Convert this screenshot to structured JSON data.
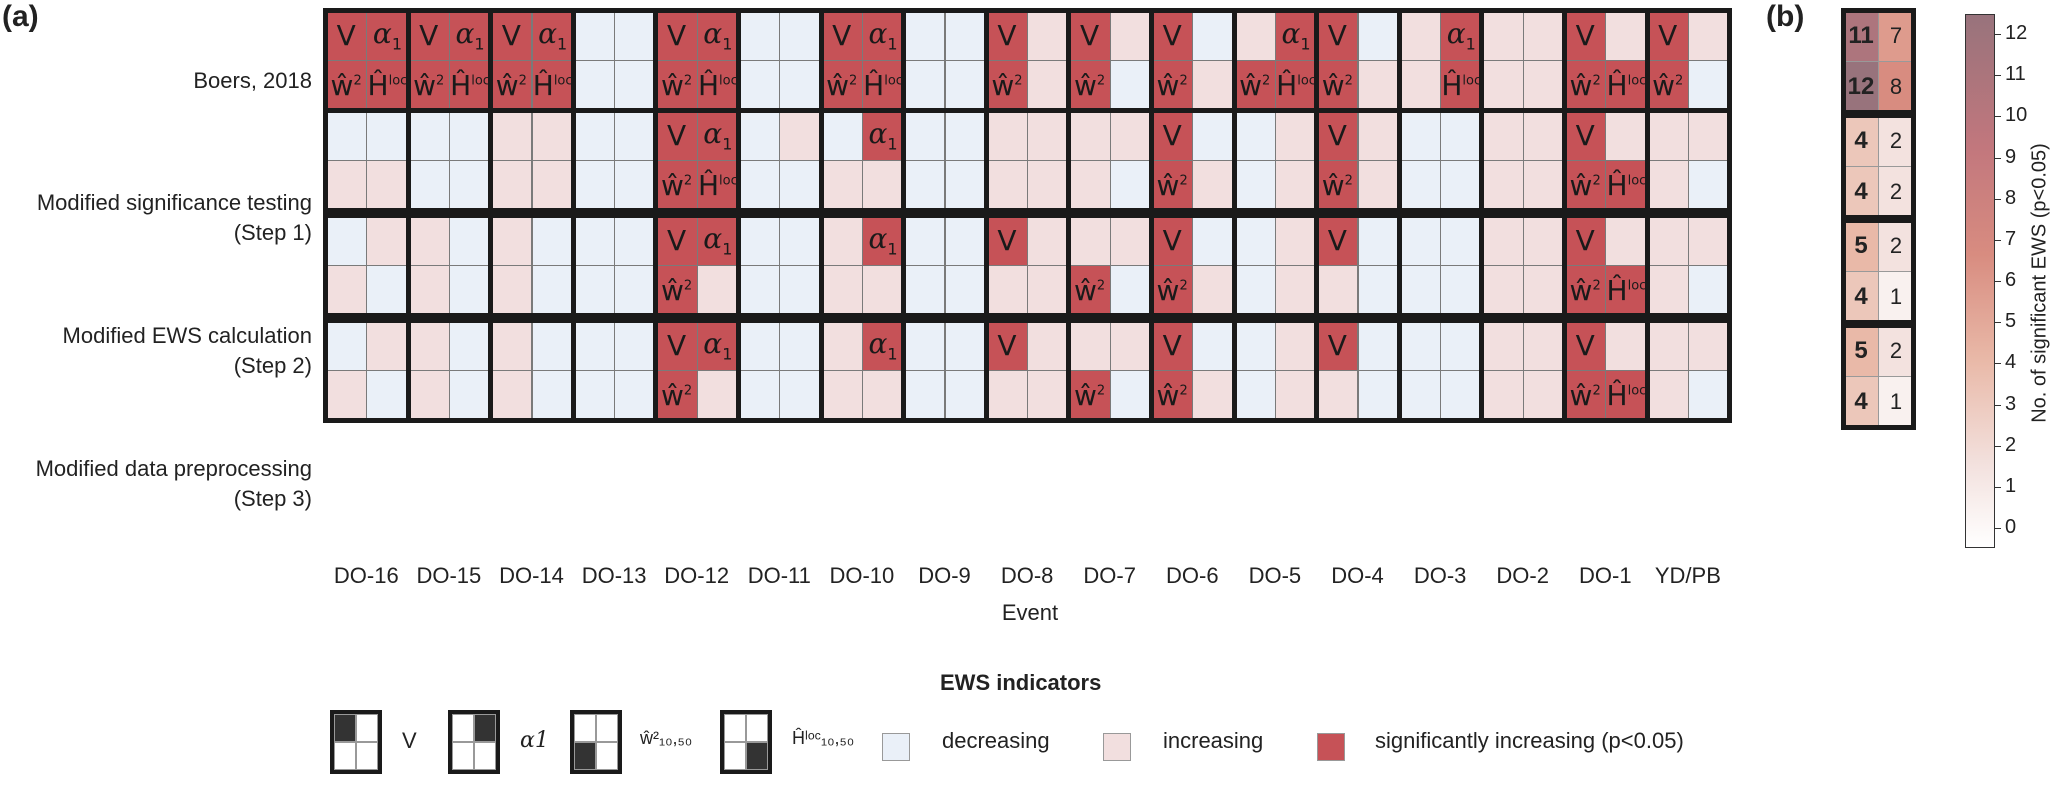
{
  "panel_a_label": "(a)",
  "panel_b_label": "(b)",
  "row_labels": [
    {
      "line1": "Boers, 2018",
      "line2": ""
    },
    {
      "line1": "Modified significance testing",
      "line2": "(Step 1)"
    },
    {
      "line1": "Modified EWS calculation",
      "line2": "(Step 2)"
    },
    {
      "line1": "Modified data preprocessing",
      "line2": "(Step 3)"
    }
  ],
  "x_axis_label": "Event",
  "events": [
    "DO-16",
    "DO-15",
    "DO-14",
    "DO-13",
    "DO-12",
    "DO-11",
    "DO-10",
    "DO-9",
    "DO-8",
    "DO-7",
    "DO-6",
    "DO-5",
    "DO-4",
    "DO-3",
    "DO-2",
    "DO-1",
    "YD/PB"
  ],
  "legend": {
    "title": "EWS indicators",
    "indicators": [
      "V",
      "α1",
      "ŵ²₁₀,₅₀",
      "Ĥˡᵒᶜ₁₀,₅₀"
    ],
    "states": [
      "decreasing",
      "increasing",
      "significantly increasing (p<0.05)"
    ]
  },
  "colors": {
    "decreasing": "#eaf0f8",
    "increasing": "#f2dfdf",
    "significant": "#c65257"
  },
  "colorbar": {
    "label": "No. of significant EWS (p<0.05)",
    "ticks": [
      "0",
      "1",
      "2",
      "3",
      "4",
      "5",
      "6",
      "7",
      "8",
      "9",
      "10",
      "11",
      "12"
    ]
  },
  "chart_data": {
    "type": "heatmap",
    "state_codes": {
      "0": "decreasing",
      "1": "increasing",
      "2": "significantly increasing (p<0.05)"
    },
    "cell_order": "per event: [V, alpha1, w2, Hloc]",
    "rows": [
      "Boers, 2018",
      "Modified significance testing (Step 1)",
      "Modified EWS calculation (Step 2)",
      "Modified data preprocessing (Step 3)"
    ],
    "values": [
      [
        [
          2,
          2,
          2,
          2
        ],
        [
          2,
          2,
          2,
          2
        ],
        [
          2,
          2,
          2,
          2
        ],
        [
          0,
          0,
          0,
          0
        ],
        [
          2,
          2,
          2,
          2
        ],
        [
          0,
          0,
          0,
          0
        ],
        [
          2,
          2,
          2,
          2
        ],
        [
          0,
          0,
          0,
          0
        ],
        [
          2,
          1,
          2,
          1
        ],
        [
          2,
          1,
          2,
          0
        ],
        [
          2,
          0,
          2,
          1
        ],
        [
          1,
          2,
          2,
          2
        ],
        [
          2,
          0,
          2,
          1
        ],
        [
          1,
          2,
          1,
          2
        ],
        [
          1,
          1,
          1,
          1
        ],
        [
          2,
          1,
          2,
          2
        ],
        [
          2,
          1,
          2,
          0
        ]
      ],
      [
        [
          0,
          0,
          1,
          1
        ],
        [
          0,
          0,
          0,
          0
        ],
        [
          1,
          1,
          1,
          1
        ],
        [
          0,
          0,
          0,
          0
        ],
        [
          2,
          2,
          2,
          2
        ],
        [
          0,
          1,
          0,
          0
        ],
        [
          0,
          2,
          1,
          1
        ],
        [
          0,
          0,
          0,
          0
        ],
        [
          1,
          1,
          1,
          1
        ],
        [
          1,
          1,
          1,
          0
        ],
        [
          2,
          0,
          2,
          1
        ],
        [
          0,
          1,
          0,
          1
        ],
        [
          2,
          1,
          2,
          1
        ],
        [
          0,
          0,
          0,
          0
        ],
        [
          1,
          1,
          1,
          1
        ],
        [
          2,
          1,
          2,
          2
        ],
        [
          1,
          1,
          1,
          0
        ]
      ],
      [
        [
          0,
          1,
          1,
          0
        ],
        [
          1,
          0,
          1,
          0
        ],
        [
          1,
          0,
          1,
          0
        ],
        [
          0,
          0,
          0,
          0
        ],
        [
          2,
          2,
          2,
          1
        ],
        [
          0,
          0,
          0,
          0
        ],
        [
          1,
          2,
          1,
          1
        ],
        [
          0,
          0,
          0,
          0
        ],
        [
          2,
          1,
          1,
          1
        ],
        [
          1,
          1,
          2,
          0
        ],
        [
          2,
          0,
          2,
          1
        ],
        [
          0,
          1,
          0,
          1
        ],
        [
          2,
          0,
          1,
          0
        ],
        [
          0,
          0,
          0,
          0
        ],
        [
          1,
          1,
          1,
          1
        ],
        [
          2,
          1,
          2,
          2
        ],
        [
          1,
          1,
          1,
          0
        ]
      ],
      [
        [
          0,
          1,
          1,
          0
        ],
        [
          1,
          0,
          1,
          0
        ],
        [
          1,
          0,
          1,
          0
        ],
        [
          0,
          0,
          0,
          0
        ],
        [
          2,
          2,
          2,
          1
        ],
        [
          0,
          0,
          0,
          0
        ],
        [
          1,
          2,
          1,
          1
        ],
        [
          0,
          0,
          0,
          0
        ],
        [
          2,
          1,
          1,
          1
        ],
        [
          1,
          1,
          2,
          0
        ],
        [
          2,
          0,
          2,
          1
        ],
        [
          0,
          1,
          0,
          1
        ],
        [
          2,
          0,
          1,
          0
        ],
        [
          0,
          0,
          0,
          0
        ],
        [
          1,
          1,
          1,
          1
        ],
        [
          2,
          1,
          2,
          2
        ],
        [
          1,
          1,
          1,
          0
        ]
      ]
    ],
    "panel_b": {
      "values": [
        [
          11,
          7
        ],
        [
          12,
          8
        ],
        [
          4,
          2
        ],
        [
          4,
          2
        ],
        [
          5,
          2
        ],
        [
          4,
          1
        ],
        [
          5,
          2
        ],
        [
          4,
          1
        ]
      ]
    },
    "colorbar_range": [
      0,
      12
    ]
  }
}
